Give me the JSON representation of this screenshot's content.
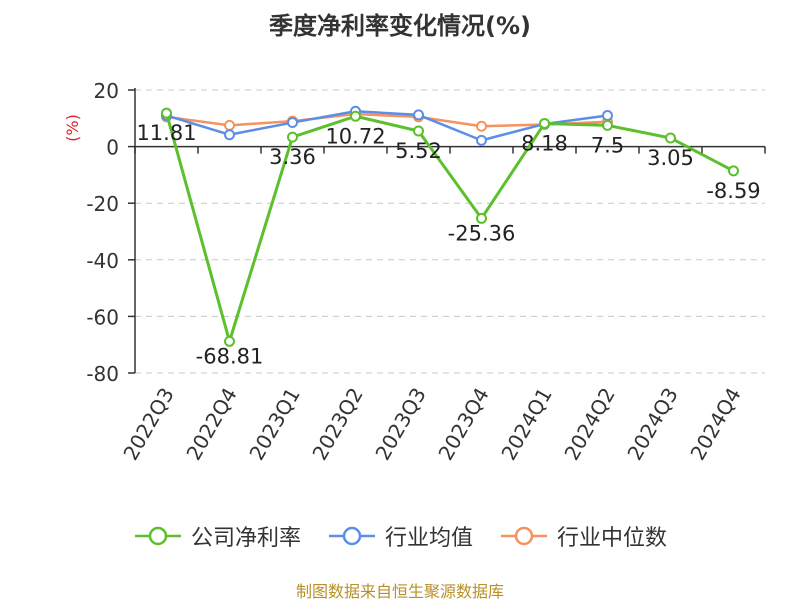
{
  "title": "季度净利率变化情况(%)",
  "source": "制图数据来自恒生聚源数据库",
  "chart_data": {
    "type": "line",
    "title": "季度净利率变化情况(%)",
    "ylabel": "(%)",
    "ylim": [
      -80,
      20
    ],
    "yticks": [
      20,
      0,
      -20,
      -40,
      -60,
      -80
    ],
    "grid": true,
    "legend_position": "bottom",
    "categories": [
      "2022Q3",
      "2022Q4",
      "2023Q1",
      "2023Q2",
      "2023Q3",
      "2023Q4",
      "2024Q1",
      "2024Q2",
      "2024Q3",
      "2024Q4"
    ],
    "series": [
      {
        "name": "公司净利率",
        "color": "#5cc02d",
        "values": [
          11.81,
          -68.81,
          3.36,
          10.72,
          5.52,
          -25.36,
          8.18,
          7.5,
          3.05,
          -8.59
        ],
        "labels": [
          "11.81",
          "-68.81",
          "3.36",
          "10.72",
          "5.52",
          "-25.36",
          "8.18",
          "7.5",
          "3.05",
          "-8.59"
        ]
      },
      {
        "name": "行业均值",
        "color": "#5b8ee6",
        "values": [
          11.0,
          4.2,
          8.5,
          12.5,
          11.2,
          2.2,
          8.0,
          11.0,
          null,
          null
        ]
      },
      {
        "name": "行业中位数",
        "color": "#f4935d",
        "values": [
          10.5,
          7.5,
          9.0,
          11.5,
          10.5,
          7.2,
          7.8,
          8.8,
          null,
          null
        ]
      }
    ]
  }
}
